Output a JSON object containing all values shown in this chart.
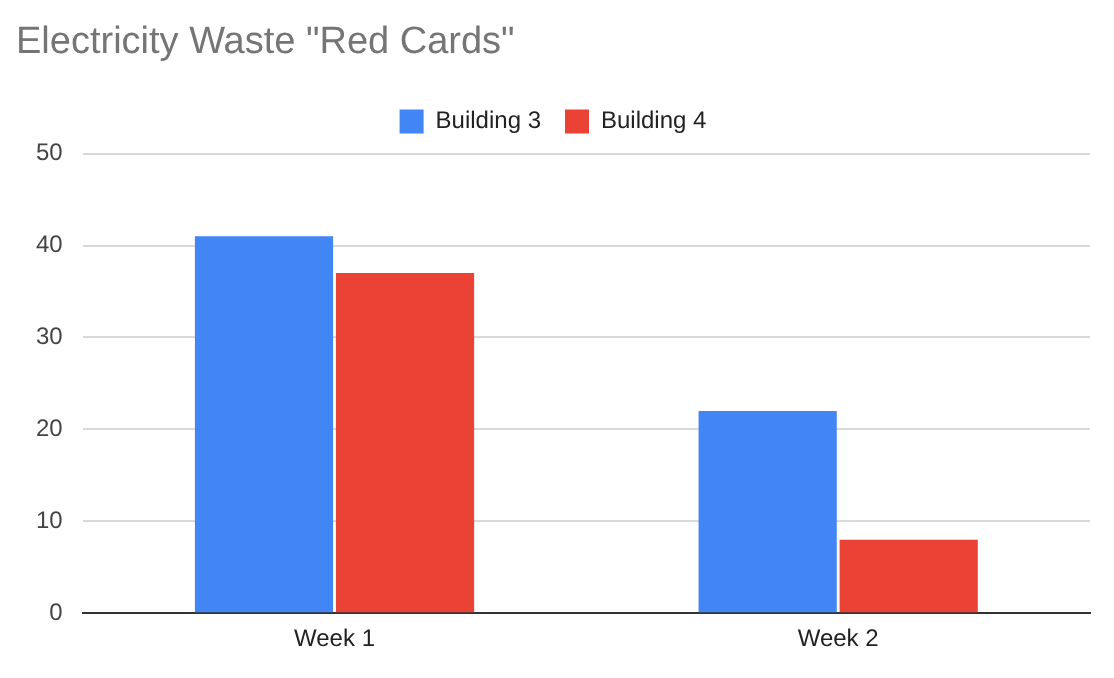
{
  "chart_data": {
    "type": "bar",
    "title": "Electricity Waste \"Red Cards\"",
    "categories": [
      "Week 1",
      "Week 2"
    ],
    "series": [
      {
        "name": "Building 3",
        "color": "#4285f4",
        "values": [
          41,
          22
        ]
      },
      {
        "name": "Building 4",
        "color": "#ea4335",
        "values": [
          37,
          8
        ]
      }
    ],
    "ylim": [
      0,
      50
    ],
    "yticks": [
      0,
      10,
      20,
      30,
      40,
      50
    ],
    "grid": "y",
    "legend": "top"
  }
}
